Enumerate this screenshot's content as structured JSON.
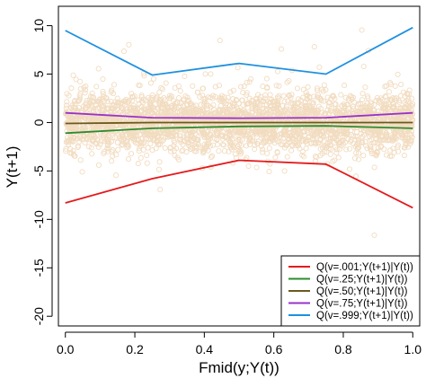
{
  "chart_data": {
    "type": "line",
    "xlabel": "Fmid(y;Y(t))",
    "ylabel": "Y(t+1)",
    "xlim": [
      -0.02,
      1.02
    ],
    "ylim": [
      -21,
      12
    ],
    "x_ticks": [
      "0.0",
      "0.2",
      "0.4",
      "0.6",
      "0.8",
      "1.0"
    ],
    "y_ticks": [
      "-20",
      "-15",
      "-10",
      "-5",
      "0",
      "5",
      "10"
    ],
    "x": [
      0.0,
      0.25,
      0.5,
      0.75,
      1.0
    ],
    "series": [
      {
        "name": "Q(v=.001;Y(t+1)|Y(t))",
        "color": "#e41a1c",
        "values": [
          -8.3,
          -5.8,
          -3.9,
          -4.3,
          -8.8
        ]
      },
      {
        "name": "Q(v=.25;Y(t+1)|Y(t))",
        "color": "#2e8b2e",
        "values": [
          -1.1,
          -0.6,
          -0.4,
          -0.35,
          -0.6
        ]
      },
      {
        "name": "Q(v=.50;Y(t+1)|Y(t))",
        "color": "#6b5a1e",
        "values": [
          -0.1,
          0.0,
          0.0,
          0.0,
          0.0
        ]
      },
      {
        "name": "Q(v=.75;Y(t+1)|Y(t))",
        "color": "#9932cc",
        "values": [
          1.0,
          0.5,
          0.45,
          0.5,
          1.0
        ]
      },
      {
        "name": "Q(v=.999;Y(t+1)|Y(t))",
        "color": "#1e90e0",
        "values": [
          9.5,
          4.9,
          6.1,
          5.0,
          9.8
        ]
      }
    ],
    "scatter": {
      "color": "#f2dcc0",
      "n": 3000,
      "x_range": [
        0,
        1
      ],
      "y_center": 0,
      "y_spread": 1.5
    },
    "legend_position": "bottom-right",
    "grid": false
  }
}
